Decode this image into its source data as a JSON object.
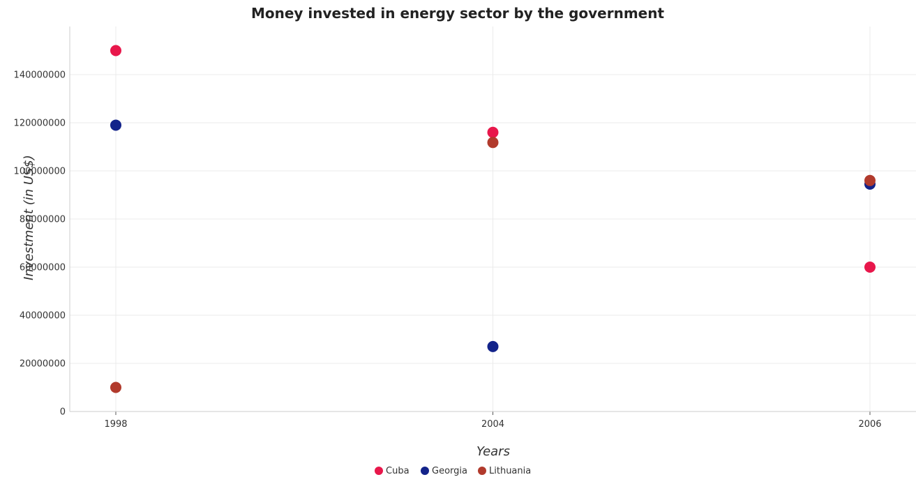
{
  "chart_data": {
    "type": "scatter",
    "title": "Money invested in energy sector by the government",
    "xlabel": "Years",
    "ylabel": "Investment (in US$)",
    "categories": [
      "1998",
      "2004",
      "2006"
    ],
    "ylim": [
      0,
      160000000
    ],
    "yticks": [
      0,
      20000000,
      40000000,
      60000000,
      80000000,
      100000000,
      120000000,
      140000000
    ],
    "ytick_labels": [
      "0",
      "20000000",
      "40000000",
      "60000000",
      "80000000",
      "100000000",
      "120000000",
      "140000000"
    ],
    "grid": true,
    "legend_position": "bottom-center",
    "series": [
      {
        "name": "Cuba",
        "color": "#e8174b",
        "values": [
          150000000,
          116000000,
          60000000
        ]
      },
      {
        "name": "Georgia",
        "color": "#13238a",
        "values": [
          119000000,
          27000000,
          94500000
        ]
      },
      {
        "name": "Lithuania",
        "color": "#b13a2c",
        "values": [
          10000000,
          111800000,
          96000000
        ]
      }
    ]
  }
}
